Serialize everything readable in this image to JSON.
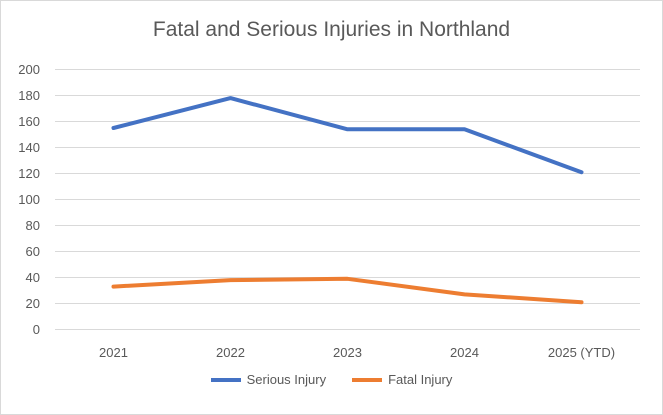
{
  "chart_data": {
    "type": "line",
    "title": "Fatal and Serious Injuries in Northland",
    "xlabel": "",
    "ylabel": "",
    "categories": [
      "2021",
      "2022",
      "2023",
      "2024",
      "2025 (YTD)"
    ],
    "ylim": [
      0,
      200
    ],
    "yticks": [
      "0",
      "20",
      "40",
      "60",
      "80",
      "100",
      "120",
      "140",
      "160",
      "180",
      "200"
    ],
    "grid": true,
    "legend_placement": "bottom",
    "series": [
      {
        "name": "Serious Injury",
        "color": "#4472c4",
        "values": [
          155,
          178,
          154,
          154,
          121
        ]
      },
      {
        "name": "Fatal Injury",
        "color": "#ed7d31",
        "values": [
          33,
          38,
          39,
          27,
          21
        ]
      }
    ]
  }
}
